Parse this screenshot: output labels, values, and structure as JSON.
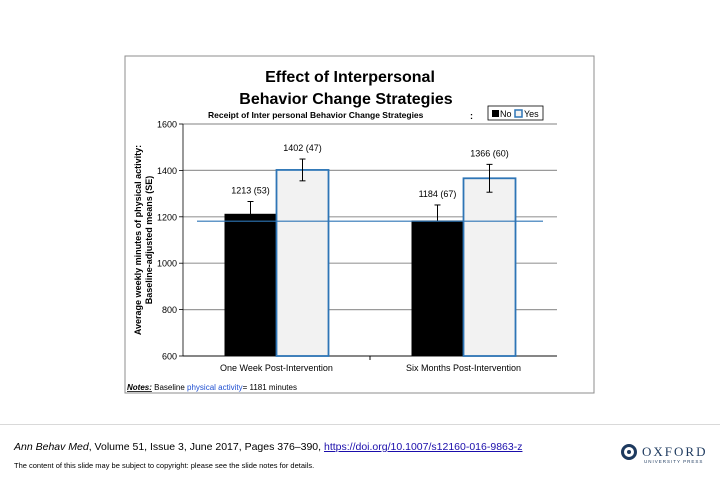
{
  "chart_data": {
    "type": "bar",
    "title_line1": "Effect of Interpersonal",
    "title_line2": "Behavior Change Strategies",
    "legend_title": "Receipt of Inter personal Behavior Change Strategies",
    "legend_colon": ":",
    "legend_position": "top-right",
    "ylabel_line1": "Average weekly minutes of physical activity:",
    "ylabel_line2": "Baseline-adjusted means (SE)",
    "xlabel": "",
    "categories": [
      "One Week Post-Intervention",
      "Six Months Post-Intervention"
    ],
    "series": [
      {
        "name": "No",
        "values": [
          1213,
          1184
        ],
        "se": [
          53,
          67
        ],
        "labels": [
          "1213 (53)",
          "1184 (67)"
        ],
        "color": "#000000"
      },
      {
        "name": "Yes",
        "values": [
          1402,
          1366
        ],
        "se": [
          47,
          60
        ],
        "labels": [
          "1402 (47)",
          "1366 (60)"
        ],
        "color": "#f2f2f2",
        "border": "#2e75b6"
      }
    ],
    "ylim": [
      600,
      1600
    ],
    "yticks": [
      "600",
      "800",
      "1000",
      "1200",
      "1400",
      "1600"
    ],
    "grid": true,
    "baseline_value": 1181,
    "baseline_color": "#2e75b6",
    "note_label": "Notes:",
    "note_text_before": "Baseline",
    "note_highlight": "physical activity",
    "note_text_after": "= 1181 minutes",
    "note_highlight_color": "#1f4fd1"
  },
  "citation": {
    "journal": "Ann Behav Med",
    "details": ", Volume 51, Issue 3, June 2017, Pages 376–390, ",
    "doi": "https://doi.org/10.1007/s12160-016-9863-z"
  },
  "copyright": "The content of this slide may be subject to copyright: please see the slide notes for details.",
  "logo": {
    "word": "OXFORD",
    "sub": "UNIVERSITY PRESS",
    "color": "#1e3a5f"
  }
}
